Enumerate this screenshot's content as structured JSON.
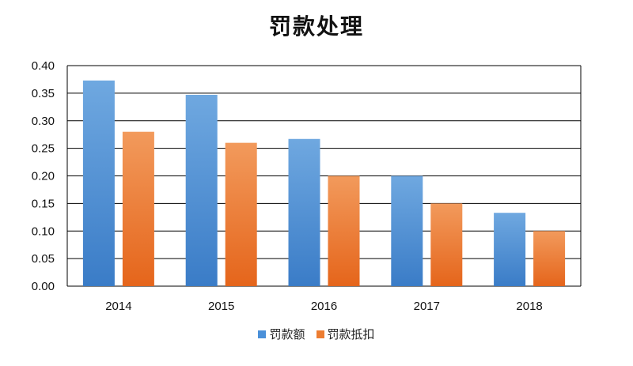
{
  "chart_data": {
    "type": "bar",
    "title": "罚款处理",
    "categories": [
      "2014",
      "2015",
      "2016",
      "2017",
      "2018"
    ],
    "series": [
      {
        "name": "罚款额",
        "values": [
          0.373,
          0.347,
          0.267,
          0.2,
          0.133
        ],
        "color": "#4a90d9"
      },
      {
        "name": "罚款抵扣",
        "values": [
          0.28,
          0.26,
          0.2,
          0.15,
          0.1
        ],
        "color": "#ed7d31"
      }
    ],
    "ylim": [
      0,
      0.4
    ],
    "yticks": [
      "0.00",
      "0.05",
      "0.10",
      "0.15",
      "0.20",
      "0.25",
      "0.30",
      "0.35",
      "0.40"
    ],
    "grid": true,
    "legend_position": "bottom"
  }
}
